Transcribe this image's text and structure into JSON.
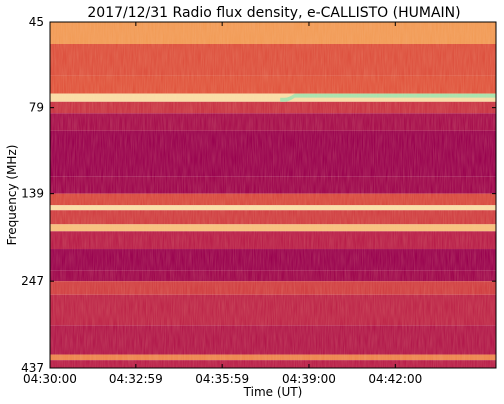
{
  "chart_data": {
    "type": "heatmap",
    "title": "2017/12/31  Radio flux density, e-CALLISTO (HUMAIN)",
    "xlabel": "Time (UT)",
    "ylabel": "Frequency (MHz)",
    "x_ticks": [
      "04:30:00",
      "04:32:59",
      "04:35:59",
      "04:39:00",
      "04:42:00"
    ],
    "x_range_min": [
      0,
      15.5
    ],
    "y_ticks": [
      "45",
      "79",
      "139",
      "247",
      "437"
    ],
    "y_scale": "log",
    "y_range_mhz": [
      45,
      437
    ],
    "y_inverted": true,
    "grid": false,
    "colormap": {
      "low": "#96004f",
      "mid_low": "#b81e4a",
      "mid": "#e0553e",
      "mid_high": "#f5a65a",
      "high": "#fbe7b3",
      "max": "#a6e6b0"
    },
    "bands": [
      {
        "f0": 45,
        "f1": 52,
        "level": 0.72
      },
      {
        "f0": 52,
        "f1": 64,
        "level": 0.48
      },
      {
        "f0": 64,
        "f1": 72,
        "level": 0.5
      },
      {
        "f0": 72,
        "f1": 76,
        "level": 0.9
      },
      {
        "f0": 76,
        "f1": 82,
        "level": 0.35
      },
      {
        "f0": 82,
        "f1": 92,
        "level": 0.12
      },
      {
        "f0": 92,
        "f1": 124,
        "level": 0.02
      },
      {
        "f0": 124,
        "f1": 139,
        "level": 0.05
      },
      {
        "f0": 139,
        "f1": 150,
        "level": 0.45
      },
      {
        "f0": 150,
        "f1": 155,
        "level": 0.9
      },
      {
        "f0": 155,
        "f1": 170,
        "level": 0.4
      },
      {
        "f0": 170,
        "f1": 178,
        "level": 0.82
      },
      {
        "f0": 178,
        "f1": 200,
        "level": 0.25
      },
      {
        "f0": 200,
        "f1": 230,
        "level": 0.02
      },
      {
        "f0": 230,
        "f1": 247,
        "level": 0.06
      },
      {
        "f0": 247,
        "f1": 270,
        "level": 0.4
      },
      {
        "f0": 270,
        "f1": 330,
        "level": 0.28
      },
      {
        "f0": 330,
        "f1": 400,
        "level": 0.2
      },
      {
        "f0": 400,
        "f1": 415,
        "level": 0.65
      },
      {
        "f0": 415,
        "f1": 437,
        "level": 0.25
      }
    ],
    "features": [
      {
        "name": "drifting-burst",
        "f_before": 75,
        "f_after": 73,
        "t_start": 8.0,
        "t_shift": 8.3,
        "t_end": 15.5,
        "level": 1.0
      }
    ]
  }
}
